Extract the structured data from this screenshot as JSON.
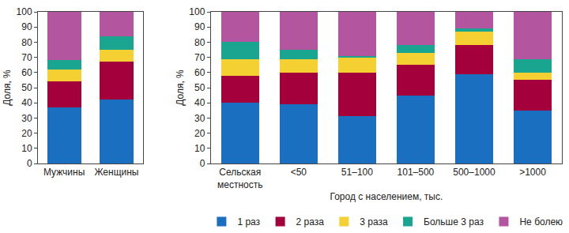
{
  "chart_data": [
    {
      "type": "bar",
      "stacked": true,
      "grid": false,
      "y_label": "Доля, %",
      "categories": [
        "Мужчины",
        "Женщины"
      ],
      "ylim": [
        0,
        100
      ],
      "yticks": [
        0,
        10,
        20,
        30,
        40,
        50,
        60,
        70,
        80,
        90,
        100
      ],
      "series": [
        {
          "name": "1 раз",
          "color": "#1a6fc0",
          "values": [
            37,
            42
          ]
        },
        {
          "name": "2 раза",
          "color": "#a3003c",
          "values": [
            17,
            25
          ]
        },
        {
          "name": "3 раза",
          "color": "#f5d033",
          "values": [
            8,
            8
          ]
        },
        {
          "name": "Больше 3 раз",
          "color": "#19a58f",
          "values": [
            6,
            9
          ]
        },
        {
          "name": "Не болею",
          "color": "#b4569f",
          "values": [
            32,
            16
          ]
        }
      ]
    },
    {
      "type": "bar",
      "stacked": true,
      "grid": false,
      "legend": "bottom",
      "y_label": "Доля, %",
      "x_label": "Город с населением, тыс.",
      "categories": [
        "Сельская местность",
        "<50",
        "51–100",
        "101–500",
        "500–1000",
        ">1000"
      ],
      "ylim": [
        0,
        100
      ],
      "yticks": [
        0,
        10,
        20,
        30,
        40,
        50,
        60,
        70,
        80,
        90,
        100
      ],
      "series": [
        {
          "name": "1 раз",
          "color": "#1a6fc0",
          "values": [
            40,
            39,
            31,
            45,
            59,
            35
          ]
        },
        {
          "name": "2 раза",
          "color": "#a3003c",
          "values": [
            18,
            21,
            29,
            20,
            19,
            20
          ]
        },
        {
          "name": "3 раза",
          "color": "#f5d033",
          "values": [
            11,
            9,
            10,
            8,
            9,
            5
          ]
        },
        {
          "name": "Больше 3 раз",
          "color": "#19a58f",
          "values": [
            11,
            6,
            1,
            5,
            2,
            9
          ]
        },
        {
          "name": "Не болею",
          "color": "#b4569f",
          "values": [
            20,
            25,
            29,
            22,
            11,
            31
          ]
        }
      ]
    }
  ]
}
